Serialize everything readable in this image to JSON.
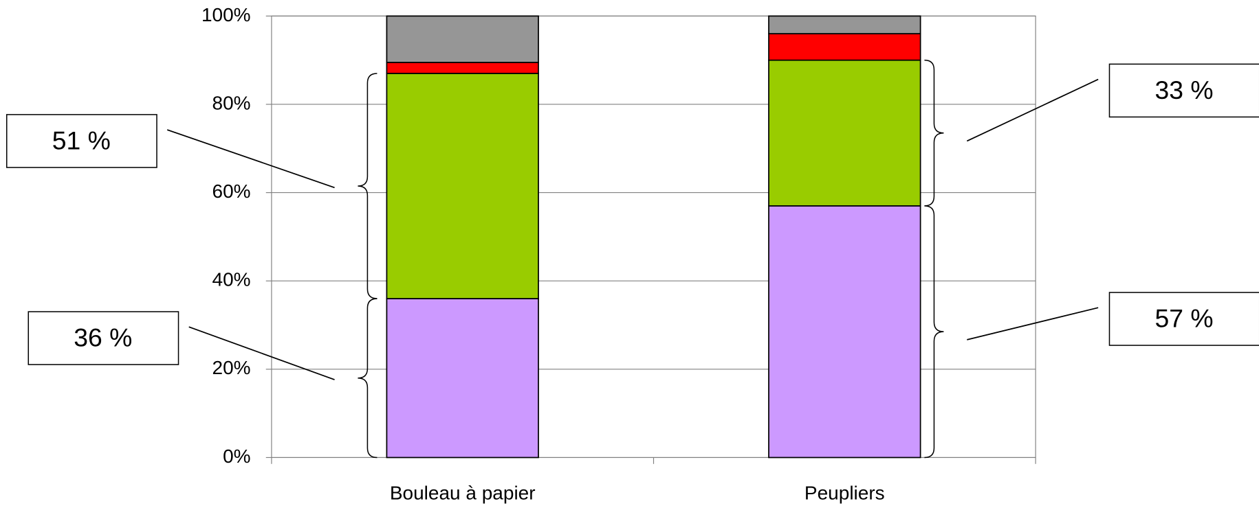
{
  "chart_data": {
    "type": "stacked_bar",
    "categories": [
      "Bouleau à papier",
      "Peupliers"
    ],
    "series": [
      {
        "color": "#cc99ff",
        "values": [
          36,
          57
        ],
        "value_labels": [
          "36 %",
          "57 %"
        ]
      },
      {
        "color": "#99cc00",
        "values": [
          51,
          33
        ],
        "value_labels": [
          "51 %",
          "33 %"
        ]
      },
      {
        "color": "#ff0000",
        "values": [
          2.5,
          6
        ]
      },
      {
        "color": "#969696",
        "values": [
          10.5,
          4
        ]
      }
    ],
    "ylim": [
      0,
      100
    ],
    "yticks": [
      {
        "value": 0,
        "label": "0%"
      },
      {
        "value": 20,
        "label": "20%"
      },
      {
        "value": 40,
        "label": "40%"
      },
      {
        "value": 60,
        "label": "60%"
      },
      {
        "value": 80,
        "label": "80%"
      },
      {
        "value": 100,
        "label": "100%"
      }
    ],
    "grid": true
  }
}
